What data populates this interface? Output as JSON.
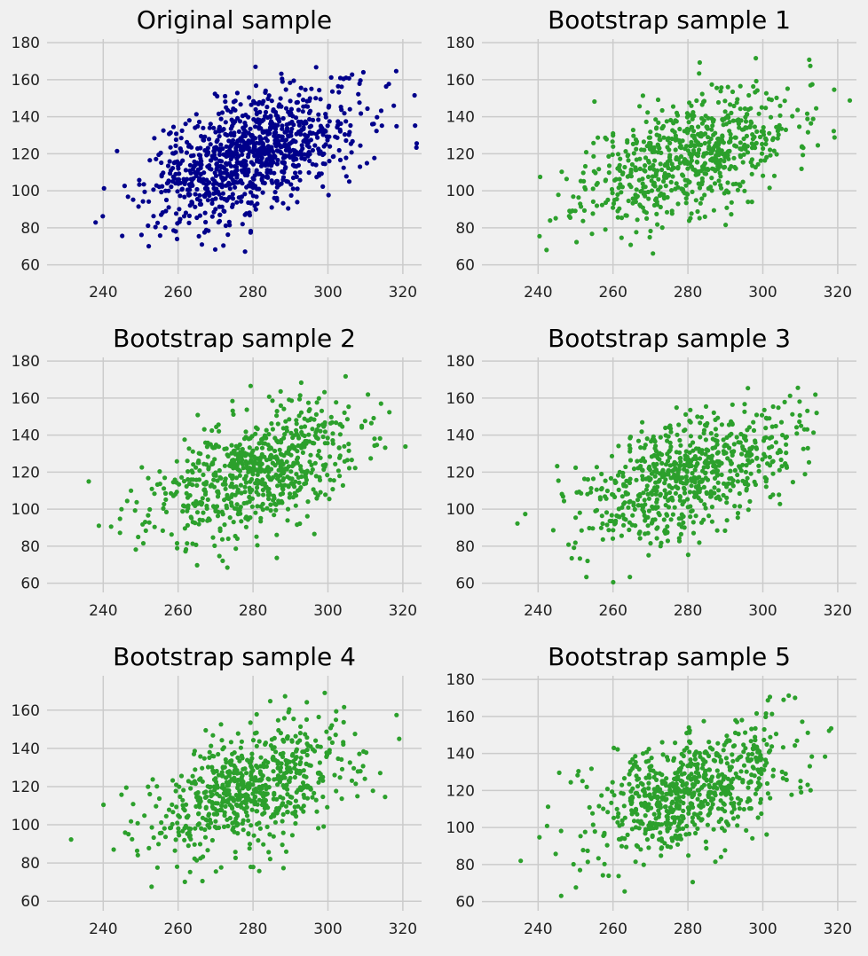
{
  "figure": {
    "background": "#f0f0f0",
    "grid_color": "#cbcbcb"
  },
  "chart_data": [
    {
      "type": "scatter",
      "title": "Original sample",
      "color": "#00008b",
      "n": 1000,
      "seed": 7,
      "xlim": [
        225,
        325
      ],
      "ylim": [
        55,
        182
      ],
      "xticks": [
        240,
        260,
        280,
        300,
        320
      ],
      "yticks": [
        60,
        80,
        100,
        120,
        140,
        160,
        180
      ],
      "grid": true
    },
    {
      "type": "scatter",
      "title": "Bootstrap sample 1",
      "color": "#2ca02c",
      "n": 700,
      "seed": 11,
      "xlim": [
        225,
        325
      ],
      "ylim": [
        55,
        182
      ],
      "xticks": [
        240,
        260,
        280,
        300,
        320
      ],
      "yticks": [
        60,
        80,
        100,
        120,
        140,
        160,
        180
      ],
      "grid": true
    },
    {
      "type": "scatter",
      "title": "Bootstrap sample 2",
      "color": "#2ca02c",
      "n": 700,
      "seed": 23,
      "xlim": [
        225,
        325
      ],
      "ylim": [
        55,
        182
      ],
      "xticks": [
        240,
        260,
        280,
        300,
        320
      ],
      "yticks": [
        60,
        80,
        100,
        120,
        140,
        160,
        180
      ],
      "grid": true
    },
    {
      "type": "scatter",
      "title": "Bootstrap sample 3",
      "color": "#2ca02c",
      "n": 700,
      "seed": 37,
      "xlim": [
        225,
        325
      ],
      "ylim": [
        55,
        182
      ],
      "xticks": [
        240,
        260,
        280,
        300,
        320
      ],
      "yticks": [
        60,
        80,
        100,
        120,
        140,
        160,
        180
      ],
      "grid": true
    },
    {
      "type": "scatter",
      "title": "Bootstrap sample 4",
      "color": "#2ca02c",
      "n": 700,
      "seed": 53,
      "xlim": [
        225,
        325
      ],
      "ylim": [
        55,
        178
      ],
      "xticks": [
        240,
        260,
        280,
        300,
        320
      ],
      "yticks": [
        60,
        80,
        100,
        120,
        140,
        160
      ],
      "grid": true
    },
    {
      "type": "scatter",
      "title": "Bootstrap sample 5",
      "color": "#2ca02c",
      "n": 700,
      "seed": 71,
      "xlim": [
        225,
        325
      ],
      "ylim": [
        55,
        182
      ],
      "xticks": [
        240,
        260,
        280,
        300,
        320
      ],
      "yticks": [
        60,
        80,
        100,
        120,
        140,
        160,
        180
      ],
      "grid": true
    }
  ]
}
